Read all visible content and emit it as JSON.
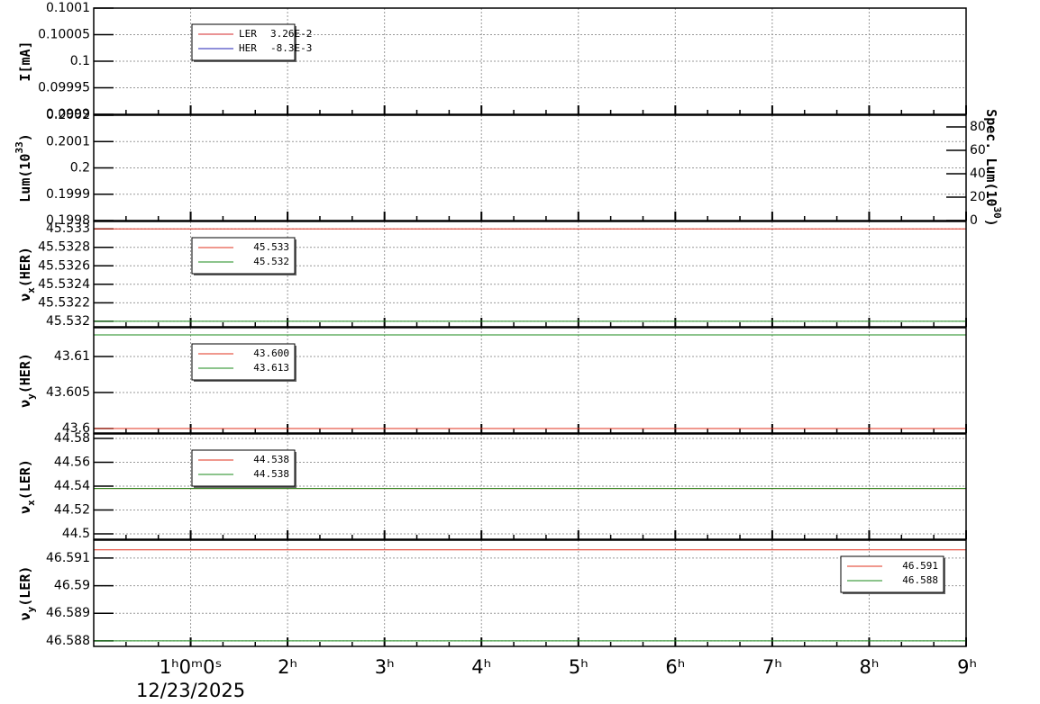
{
  "chart_data": [
    {
      "type": "line",
      "ylabel": [
        {
          "text": "I[mA]"
        }
      ],
      "ylim": [
        0.0999,
        0.1001
      ],
      "yticks": [
        0.0999,
        0.09995,
        0.1,
        0.10005,
        0.1001
      ],
      "xlim": [
        0,
        9
      ],
      "grid": true,
      "legend": "upper left",
      "series": [
        {
          "name": "LER",
          "legend_value": "3.26E-2",
          "color": "#d62728"
        },
        {
          "name": "HER",
          "legend_value": "-8.3E-3",
          "color": "#1f1fb4"
        }
      ]
    },
    {
      "type": "line",
      "ylabel": [
        {
          "text": "Lum(10"
        },
        {
          "text": "33",
          "shift": "super"
        },
        {
          "text": ")"
        }
      ],
      "ylim": [
        0.1998,
        0.2002
      ],
      "yticks": [
        0.1998,
        0.1999,
        0.2,
        0.2001,
        0.2002
      ],
      "xlim": [
        0,
        9
      ],
      "grid": true,
      "y2label": [
        {
          "text": "Spec. Lum(10"
        },
        {
          "text": "30",
          "shift": "super"
        },
        {
          "text": ")"
        }
      ],
      "y2lim": [
        0,
        90
      ],
      "y2ticks": [
        0,
        20,
        40,
        60,
        80
      ],
      "series": []
    },
    {
      "type": "line",
      "ylabel": [
        {
          "text": "ν"
        },
        {
          "text": "x",
          "shift": "sub"
        },
        {
          "text": "(HER)"
        }
      ],
      "ylim": [
        45.53194,
        45.53308
      ],
      "yticks": [
        45.532,
        45.5322,
        45.5324,
        45.5326,
        45.5328,
        45.533
      ],
      "xlim": [
        0,
        9
      ],
      "grid": true,
      "legend": "upper left",
      "x": [
        0,
        9
      ],
      "series": [
        {
          "name": "45.533",
          "color": "#e0301e",
          "values": [
            45.533,
            45.533
          ]
        },
        {
          "name": "45.532",
          "color": "#1a8a1a",
          "values": [
            45.532,
            45.532
          ]
        }
      ]
    },
    {
      "type": "line",
      "ylabel": [
        {
          "text": "ν"
        },
        {
          "text": "y",
          "shift": "sub"
        },
        {
          "text": "(HER)"
        }
      ],
      "ylim": [
        43.599375,
        43.614
      ],
      "yticks": [
        43.6,
        43.605,
        43.61
      ],
      "xlim": [
        0,
        9
      ],
      "grid": true,
      "legend": "upper left",
      "x": [
        0,
        9
      ],
      "series": [
        {
          "name": "43.600",
          "color": "#e0301e",
          "values": [
            43.6,
            43.6
          ]
        },
        {
          "name": "43.613",
          "color": "#1a8a1a",
          "values": [
            43.613,
            43.613
          ]
        }
      ]
    },
    {
      "type": "line",
      "ylabel": [
        {
          "text": "ν"
        },
        {
          "text": "x",
          "shift": "sub"
        },
        {
          "text": "(LER)"
        }
      ],
      "ylim": [
        44.4955,
        44.5838
      ],
      "yticks": [
        44.5,
        44.52,
        44.54,
        44.56,
        44.58
      ],
      "xlim": [
        0,
        9
      ],
      "grid": true,
      "legend": "upper left",
      "x": [
        0,
        9
      ],
      "series": [
        {
          "name": "44.538",
          "color": "#e0301e",
          "values": [
            44.538,
            44.538
          ]
        },
        {
          "name": "44.538",
          "color": "#1a8a1a",
          "values": [
            44.538,
            44.538
          ]
        }
      ]
    },
    {
      "type": "line",
      "ylabel": [
        {
          "text": "ν"
        },
        {
          "text": "y",
          "shift": "sub"
        },
        {
          "text": "(LER)"
        }
      ],
      "ylim": [
        46.5878,
        46.59165
      ],
      "yticks": [
        46.588,
        46.589,
        46.59,
        46.591
      ],
      "xlim": [
        0,
        9
      ],
      "grid": true,
      "legend": "upper right",
      "x": [
        0,
        9
      ],
      "series": [
        {
          "name": "46.591",
          "color": "#e0301e",
          "values": [
            46.5913,
            46.5913
          ]
        },
        {
          "name": "46.588",
          "color": "#1a8a1a",
          "values": [
            46.588,
            46.588
          ]
        }
      ],
      "xticks": [
        {
          "value": 1,
          "label": "1ʰ0ᵐ0ˢ"
        },
        {
          "value": 2,
          "label": "2ʰ"
        },
        {
          "value": 3,
          "label": "3ʰ"
        },
        {
          "value": 4,
          "label": "4ʰ"
        },
        {
          "value": 5,
          "label": "5ʰ"
        },
        {
          "value": 6,
          "label": "6ʰ"
        },
        {
          "value": 7,
          "label": "7ʰ"
        },
        {
          "value": 8,
          "label": "8ʰ"
        },
        {
          "value": 9,
          "label": "9ʰ"
        }
      ],
      "xlabel": "12/23/2025"
    }
  ]
}
